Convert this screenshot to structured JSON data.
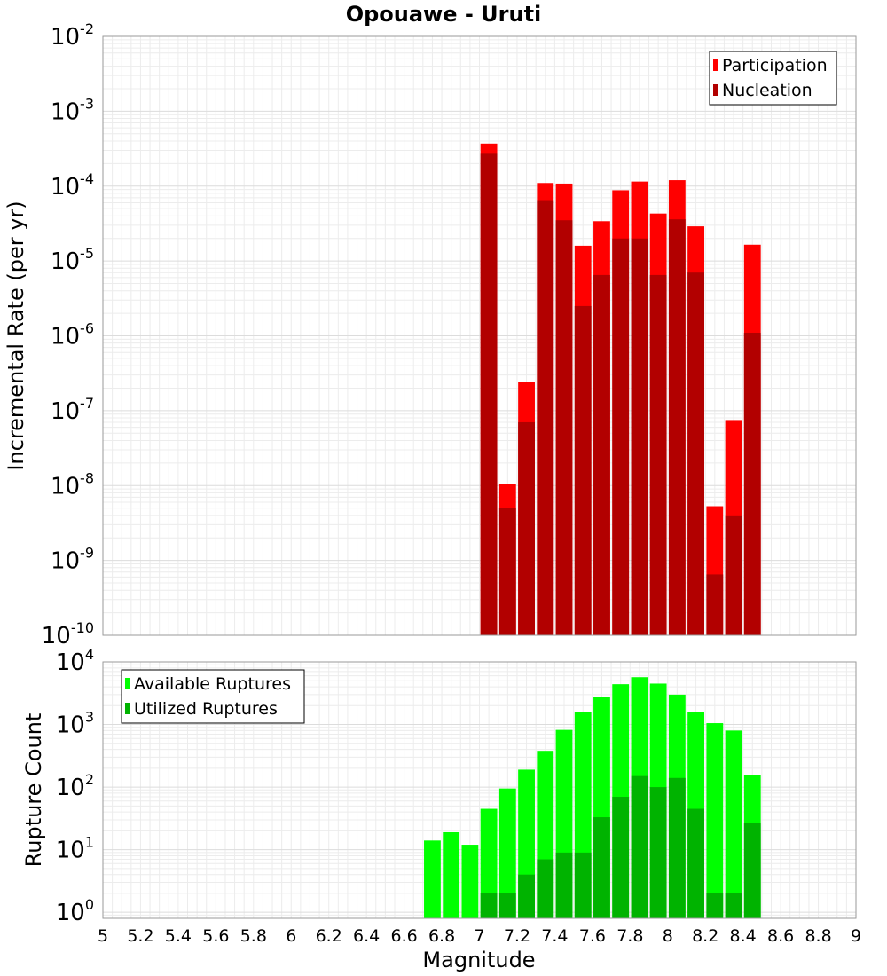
{
  "chart_data": [
    {
      "type": "bar",
      "title": "Opouawe - Uruti",
      "xlabel": "",
      "ylabel": "Incremental Rate (per yr)",
      "y_scale": "log",
      "ylim": [
        1e-10,
        0.01
      ],
      "xlim": [
        5,
        9
      ],
      "grid": true,
      "legend_position": "top-right",
      "x_ticks": [
        "5",
        "5.2",
        "5.4",
        "5.6",
        "5.8",
        "6",
        "6.2",
        "6.4",
        "6.6",
        "6.8",
        "7",
        "7.2",
        "7.4",
        "7.6",
        "7.8",
        "8",
        "8.2",
        "8.4",
        "8.6",
        "8.8",
        "9"
      ],
      "y_ticks": [
        {
          "base": "10",
          "exp": "-10"
        },
        {
          "base": "10",
          "exp": "-9"
        },
        {
          "base": "10",
          "exp": "-8"
        },
        {
          "base": "10",
          "exp": "-7"
        },
        {
          "base": "10",
          "exp": "-6"
        },
        {
          "base": "10",
          "exp": "-5"
        },
        {
          "base": "10",
          "exp": "-4"
        },
        {
          "base": "10",
          "exp": "-3"
        },
        {
          "base": "10",
          "exp": "-2"
        }
      ],
      "x": [
        7.05,
        7.15,
        7.25,
        7.35,
        7.45,
        7.55,
        7.65,
        7.75,
        7.85,
        7.95,
        8.05,
        8.15,
        8.25,
        8.35,
        8.45
      ],
      "bin_width": 0.1,
      "series": [
        {
          "name": "Participation",
          "color": "#ff0000",
          "values": [
            0.00037,
            1.05e-08,
            2.4e-07,
            0.00011,
            0.000108,
            1.6e-05,
            3.4e-05,
            8.8e-05,
            0.000115,
            4.3e-05,
            0.00012,
            2.9e-05,
            5.3e-09,
            7.5e-08,
            1.65e-05
          ]
        },
        {
          "name": "Nucleation",
          "color": "#b20000",
          "values": [
            0.00027,
            5e-09,
            7e-08,
            6.5e-05,
            3.5e-05,
            2.5e-06,
            6.5e-06,
            2e-05,
            2e-05,
            6.5e-06,
            3.6e-05,
            7e-06,
            6.5e-10,
            4e-09,
            1.1e-06
          ]
        }
      ]
    },
    {
      "type": "bar",
      "title": "",
      "xlabel": "Magnitude",
      "ylabel": "Rupture Count",
      "y_scale": "log",
      "ylim": [
        0.8,
        10000.0
      ],
      "xlim": [
        5,
        9
      ],
      "grid": true,
      "legend_position": "top-left",
      "x_ticks": [
        "5",
        "5.2",
        "5.4",
        "5.6",
        "5.8",
        "6",
        "6.2",
        "6.4",
        "6.6",
        "6.8",
        "7",
        "7.2",
        "7.4",
        "7.6",
        "7.8",
        "8",
        "8.2",
        "8.4",
        "8.6",
        "8.8",
        "9"
      ],
      "y_ticks": [
        {
          "base": "10",
          "exp": "0"
        },
        {
          "base": "10",
          "exp": "1"
        },
        {
          "base": "10",
          "exp": "2"
        },
        {
          "base": "10",
          "exp": "3"
        },
        {
          "base": "10",
          "exp": "4"
        }
      ],
      "x": [
        6.75,
        6.85,
        6.95,
        7.05,
        7.15,
        7.25,
        7.35,
        7.45,
        7.55,
        7.65,
        7.75,
        7.85,
        7.95,
        8.05,
        8.15,
        8.25,
        8.35,
        8.45
      ],
      "bin_width": 0.1,
      "series": [
        {
          "name": "Available Ruptures",
          "color": "#00ff00",
          "values": [
            14,
            19,
            12,
            45,
            95,
            190,
            380,
            820,
            1600,
            2800,
            4400,
            5700,
            4500,
            3000,
            1600,
            1050,
            800,
            155
          ]
        },
        {
          "name": "Utilized Ruptures",
          "color": "#00b300",
          "values": [
            0,
            0,
            0,
            2,
            2,
            4,
            7,
            9,
            9,
            33,
            70,
            150,
            100,
            140,
            45,
            2,
            2,
            27
          ]
        }
      ]
    }
  ]
}
